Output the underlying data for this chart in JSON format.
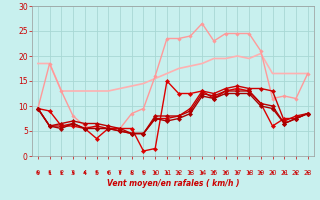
{
  "background_color": "#c8f0ee",
  "grid_color": "#a8d8d4",
  "xlabel": "Vent moyen/en rafales ( km/h )",
  "xlabel_color": "#cc0000",
  "tick_color": "#cc0000",
  "xlim": [
    -0.5,
    23.5
  ],
  "ylim": [
    0,
    30
  ],
  "yticks": [
    0,
    5,
    10,
    15,
    20,
    25,
    30
  ],
  "xticks": [
    0,
    1,
    2,
    3,
    4,
    5,
    6,
    7,
    8,
    9,
    10,
    11,
    12,
    13,
    14,
    15,
    16,
    17,
    18,
    19,
    20,
    21,
    22,
    23
  ],
  "lines": [
    {
      "x": [
        0,
        1,
        2,
        3,
        4,
        5,
        6,
        7,
        8,
        9,
        10,
        11,
        12,
        13,
        14,
        15,
        16,
        17,
        18,
        19,
        20,
        21,
        22,
        23
      ],
      "y": [
        18.5,
        18.5,
        13.0,
        13.0,
        13.0,
        13.0,
        13.0,
        13.5,
        14.0,
        14.5,
        15.5,
        16.5,
        17.5,
        18.0,
        18.5,
        19.5,
        19.5,
        20.0,
        19.5,
        20.5,
        16.5,
        16.5,
        16.5,
        16.5
      ],
      "color": "#ffb0b0",
      "lw": 1.2,
      "marker": null,
      "ms": 0
    },
    {
      "x": [
        0,
        1,
        2,
        3,
        4,
        5,
        6,
        7,
        8,
        9,
        10,
        11,
        12,
        13,
        14,
        15,
        16,
        17,
        18,
        19,
        20,
        21,
        22,
        23
      ],
      "y": [
        9.5,
        18.5,
        13.0,
        8.0,
        6.0,
        5.5,
        5.5,
        5.5,
        8.5,
        9.5,
        16.0,
        23.5,
        23.5,
        24.0,
        26.5,
        23.0,
        24.5,
        24.5,
        24.5,
        21.0,
        11.5,
        12.0,
        11.5,
        16.5
      ],
      "color": "#ff9999",
      "lw": 1.0,
      "marker": "D",
      "ms": 1.8
    },
    {
      "x": [
        0,
        1,
        2,
        3,
        4,
        5,
        6,
        7,
        8,
        9,
        10,
        11,
        12,
        13,
        14,
        15,
        16,
        17,
        18,
        19,
        20,
        21,
        22,
        23
      ],
      "y": [
        9.5,
        9.0,
        6.0,
        6.0,
        5.5,
        3.5,
        5.5,
        5.5,
        5.5,
        1.0,
        1.5,
        15.0,
        12.5,
        12.5,
        13.0,
        11.5,
        13.0,
        13.5,
        13.0,
        10.5,
        6.0,
        7.5,
        7.5,
        8.5
      ],
      "color": "#dd0000",
      "lw": 1.0,
      "marker": "D",
      "ms": 2.2
    },
    {
      "x": [
        0,
        1,
        2,
        3,
        4,
        5,
        6,
        7,
        8,
        9,
        10,
        11,
        12,
        13,
        14,
        15,
        16,
        17,
        18,
        19,
        20,
        21,
        22,
        23
      ],
      "y": [
        9.5,
        6.0,
        6.0,
        6.5,
        5.5,
        6.0,
        5.5,
        5.0,
        4.5,
        4.5,
        7.5,
        7.5,
        8.0,
        9.5,
        13.0,
        12.5,
        13.5,
        14.0,
        13.5,
        13.5,
        13.0,
        7.0,
        8.0,
        8.5
      ],
      "color": "#cc0000",
      "lw": 1.0,
      "marker": "D",
      "ms": 2.2
    },
    {
      "x": [
        0,
        1,
        2,
        3,
        4,
        5,
        6,
        7,
        8,
        9,
        10,
        11,
        12,
        13,
        14,
        15,
        16,
        17,
        18,
        19,
        20,
        21,
        22,
        23
      ],
      "y": [
        9.5,
        6.0,
        6.5,
        7.0,
        6.5,
        6.5,
        6.0,
        5.5,
        4.5,
        4.5,
        8.0,
        8.0,
        8.0,
        9.0,
        12.5,
        12.0,
        13.0,
        13.0,
        13.0,
        10.5,
        10.0,
        6.5,
        7.5,
        8.5
      ],
      "color": "#bb0000",
      "lw": 1.0,
      "marker": "D",
      "ms": 2.2
    },
    {
      "x": [
        0,
        1,
        2,
        3,
        4,
        5,
        6,
        7,
        8,
        9,
        10,
        11,
        12,
        13,
        14,
        15,
        16,
        17,
        18,
        19,
        20,
        21,
        22,
        23
      ],
      "y": [
        9.5,
        6.0,
        5.5,
        6.5,
        5.5,
        5.5,
        5.5,
        5.0,
        4.5,
        4.5,
        7.5,
        7.0,
        7.5,
        8.5,
        12.0,
        11.5,
        12.5,
        12.5,
        12.5,
        10.0,
        9.5,
        6.5,
        7.5,
        8.5
      ],
      "color": "#aa0000",
      "lw": 1.0,
      "marker": "D",
      "ms": 2.2
    }
  ],
  "arrow_color": "#cc0000"
}
